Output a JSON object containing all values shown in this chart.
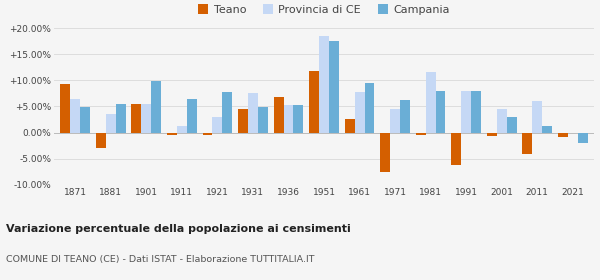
{
  "years": [
    1871,
    1881,
    1901,
    1911,
    1921,
    1931,
    1936,
    1951,
    1961,
    1971,
    1981,
    1991,
    2001,
    2011,
    2021
  ],
  "teano": [
    9.3,
    -3.0,
    5.5,
    -0.5,
    -0.5,
    4.5,
    6.8,
    11.8,
    2.5,
    -7.5,
    -0.5,
    -6.2,
    -0.7,
    -4.2,
    -0.8
  ],
  "provincia_ce": [
    6.5,
    3.5,
    5.5,
    1.2,
    3.0,
    7.5,
    5.3,
    18.5,
    7.8,
    4.5,
    11.5,
    8.0,
    4.5,
    6.0,
    0.0
  ],
  "campania": [
    4.8,
    5.5,
    9.8,
    6.5,
    7.8,
    4.9,
    5.3,
    17.5,
    9.5,
    6.2,
    8.0,
    8.0,
    3.0,
    1.2,
    -2.0
  ],
  "teano_color": "#d45f00",
  "provincia_color": "#c5d8f5",
  "campania_color": "#6aaed6",
  "title": "Variazione percentuale della popolazione ai censimenti",
  "subtitle": "COMUNE DI TEANO (CE) - Dati ISTAT - Elaborazione TUTTITALIA.IT",
  "legend_labels": [
    "Teano",
    "Provincia di CE",
    "Campania"
  ],
  "ylim": [
    -10,
    20
  ],
  "yticks": [
    -10.0,
    -5.0,
    0.0,
    5.0,
    10.0,
    15.0,
    20.0
  ],
  "ytick_labels": [
    "-10.00%",
    "-5.00%",
    "0.00%",
    "+5.00%",
    "+10.00%",
    "+15.00%",
    "+20.00%"
  ],
  "bg_color": "#f5f5f5",
  "grid_color": "#dddddd"
}
